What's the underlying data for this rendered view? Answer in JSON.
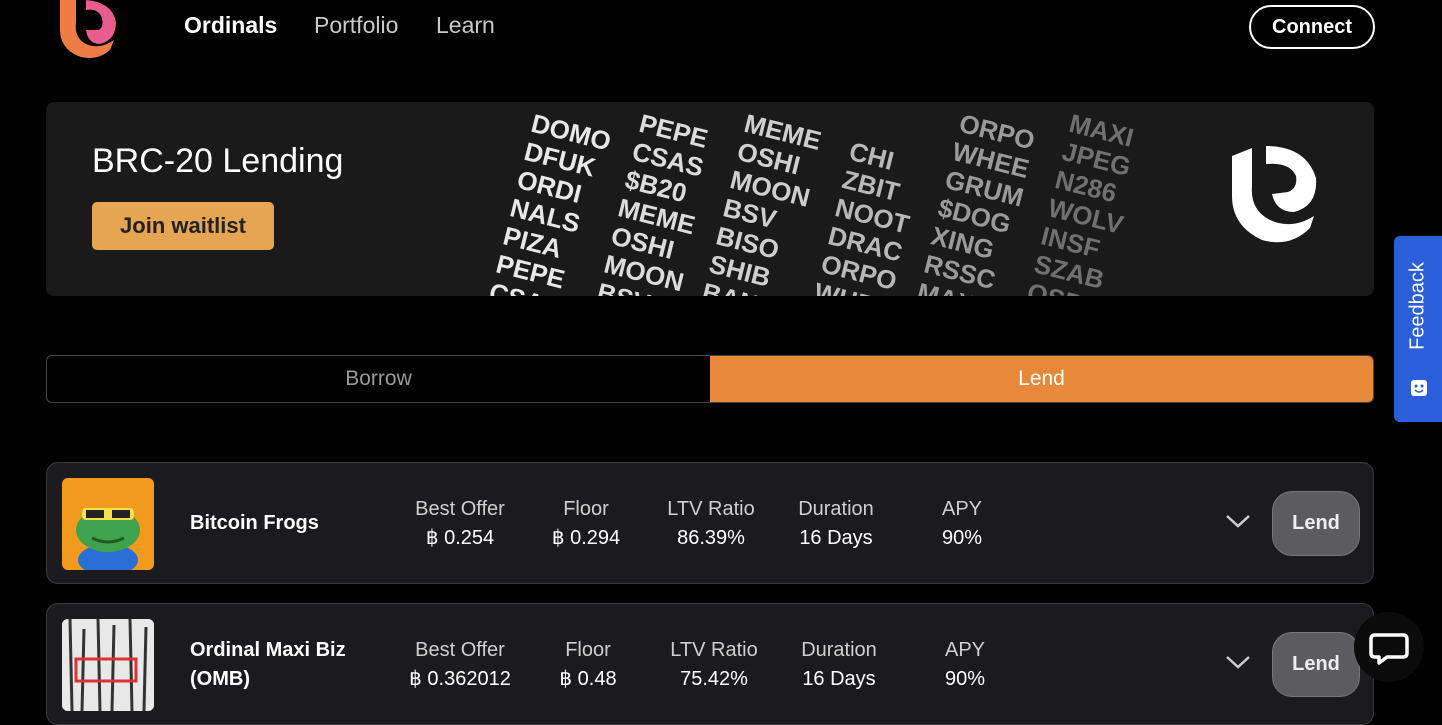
{
  "nav": {
    "items": [
      "Ordinals",
      "Portfolio",
      "Learn"
    ],
    "connect": "Connect"
  },
  "banner": {
    "title": "BRC-20 Lending",
    "button": "Join waitlist",
    "tickers": [
      [
        "DOMO",
        "DFUK",
        "ORDI",
        "NALS",
        "PIZA",
        "PEPE",
        "CSAS"
      ],
      [
        "PEPE",
        "CSAS",
        "$B20",
        "MEME",
        "OSHI",
        "MOON",
        "BSV"
      ],
      [
        "MEME",
        "OSHI",
        "MOON",
        "BSV",
        "BISO",
        "SHIB",
        "BANK"
      ],
      [
        "CHI",
        "ZBIT",
        "NOOT",
        "DRAC",
        "ORPO",
        "WHEE"
      ],
      [
        "ORPO",
        "WHEE",
        "GRUM",
        "$DOG",
        "XING",
        "RSSC",
        "MAXI"
      ],
      [
        "MAXI",
        "JPEG",
        "N286",
        "WOLV",
        "INSF",
        "SZAB",
        "OSPY"
      ]
    ]
  },
  "tabs": [
    "Borrow",
    "Lend"
  ],
  "feedback": "Feedback",
  "columns": [
    "Best Offer",
    "Floor",
    "LTV Ratio",
    "Duration",
    "APY"
  ],
  "rows": [
    {
      "name": "Bitcoin Frogs",
      "values": [
        "฿ 0.254",
        "฿ 0.294",
        "86.39%",
        "16 Days",
        "90%"
      ],
      "action": "Lend"
    },
    {
      "name": "Ordinal Maxi Biz (OMB)",
      "values": [
        "฿ 0.362012",
        "฿ 0.48",
        "75.42%",
        "16 Days",
        "90%"
      ],
      "action": "Lend"
    }
  ]
}
